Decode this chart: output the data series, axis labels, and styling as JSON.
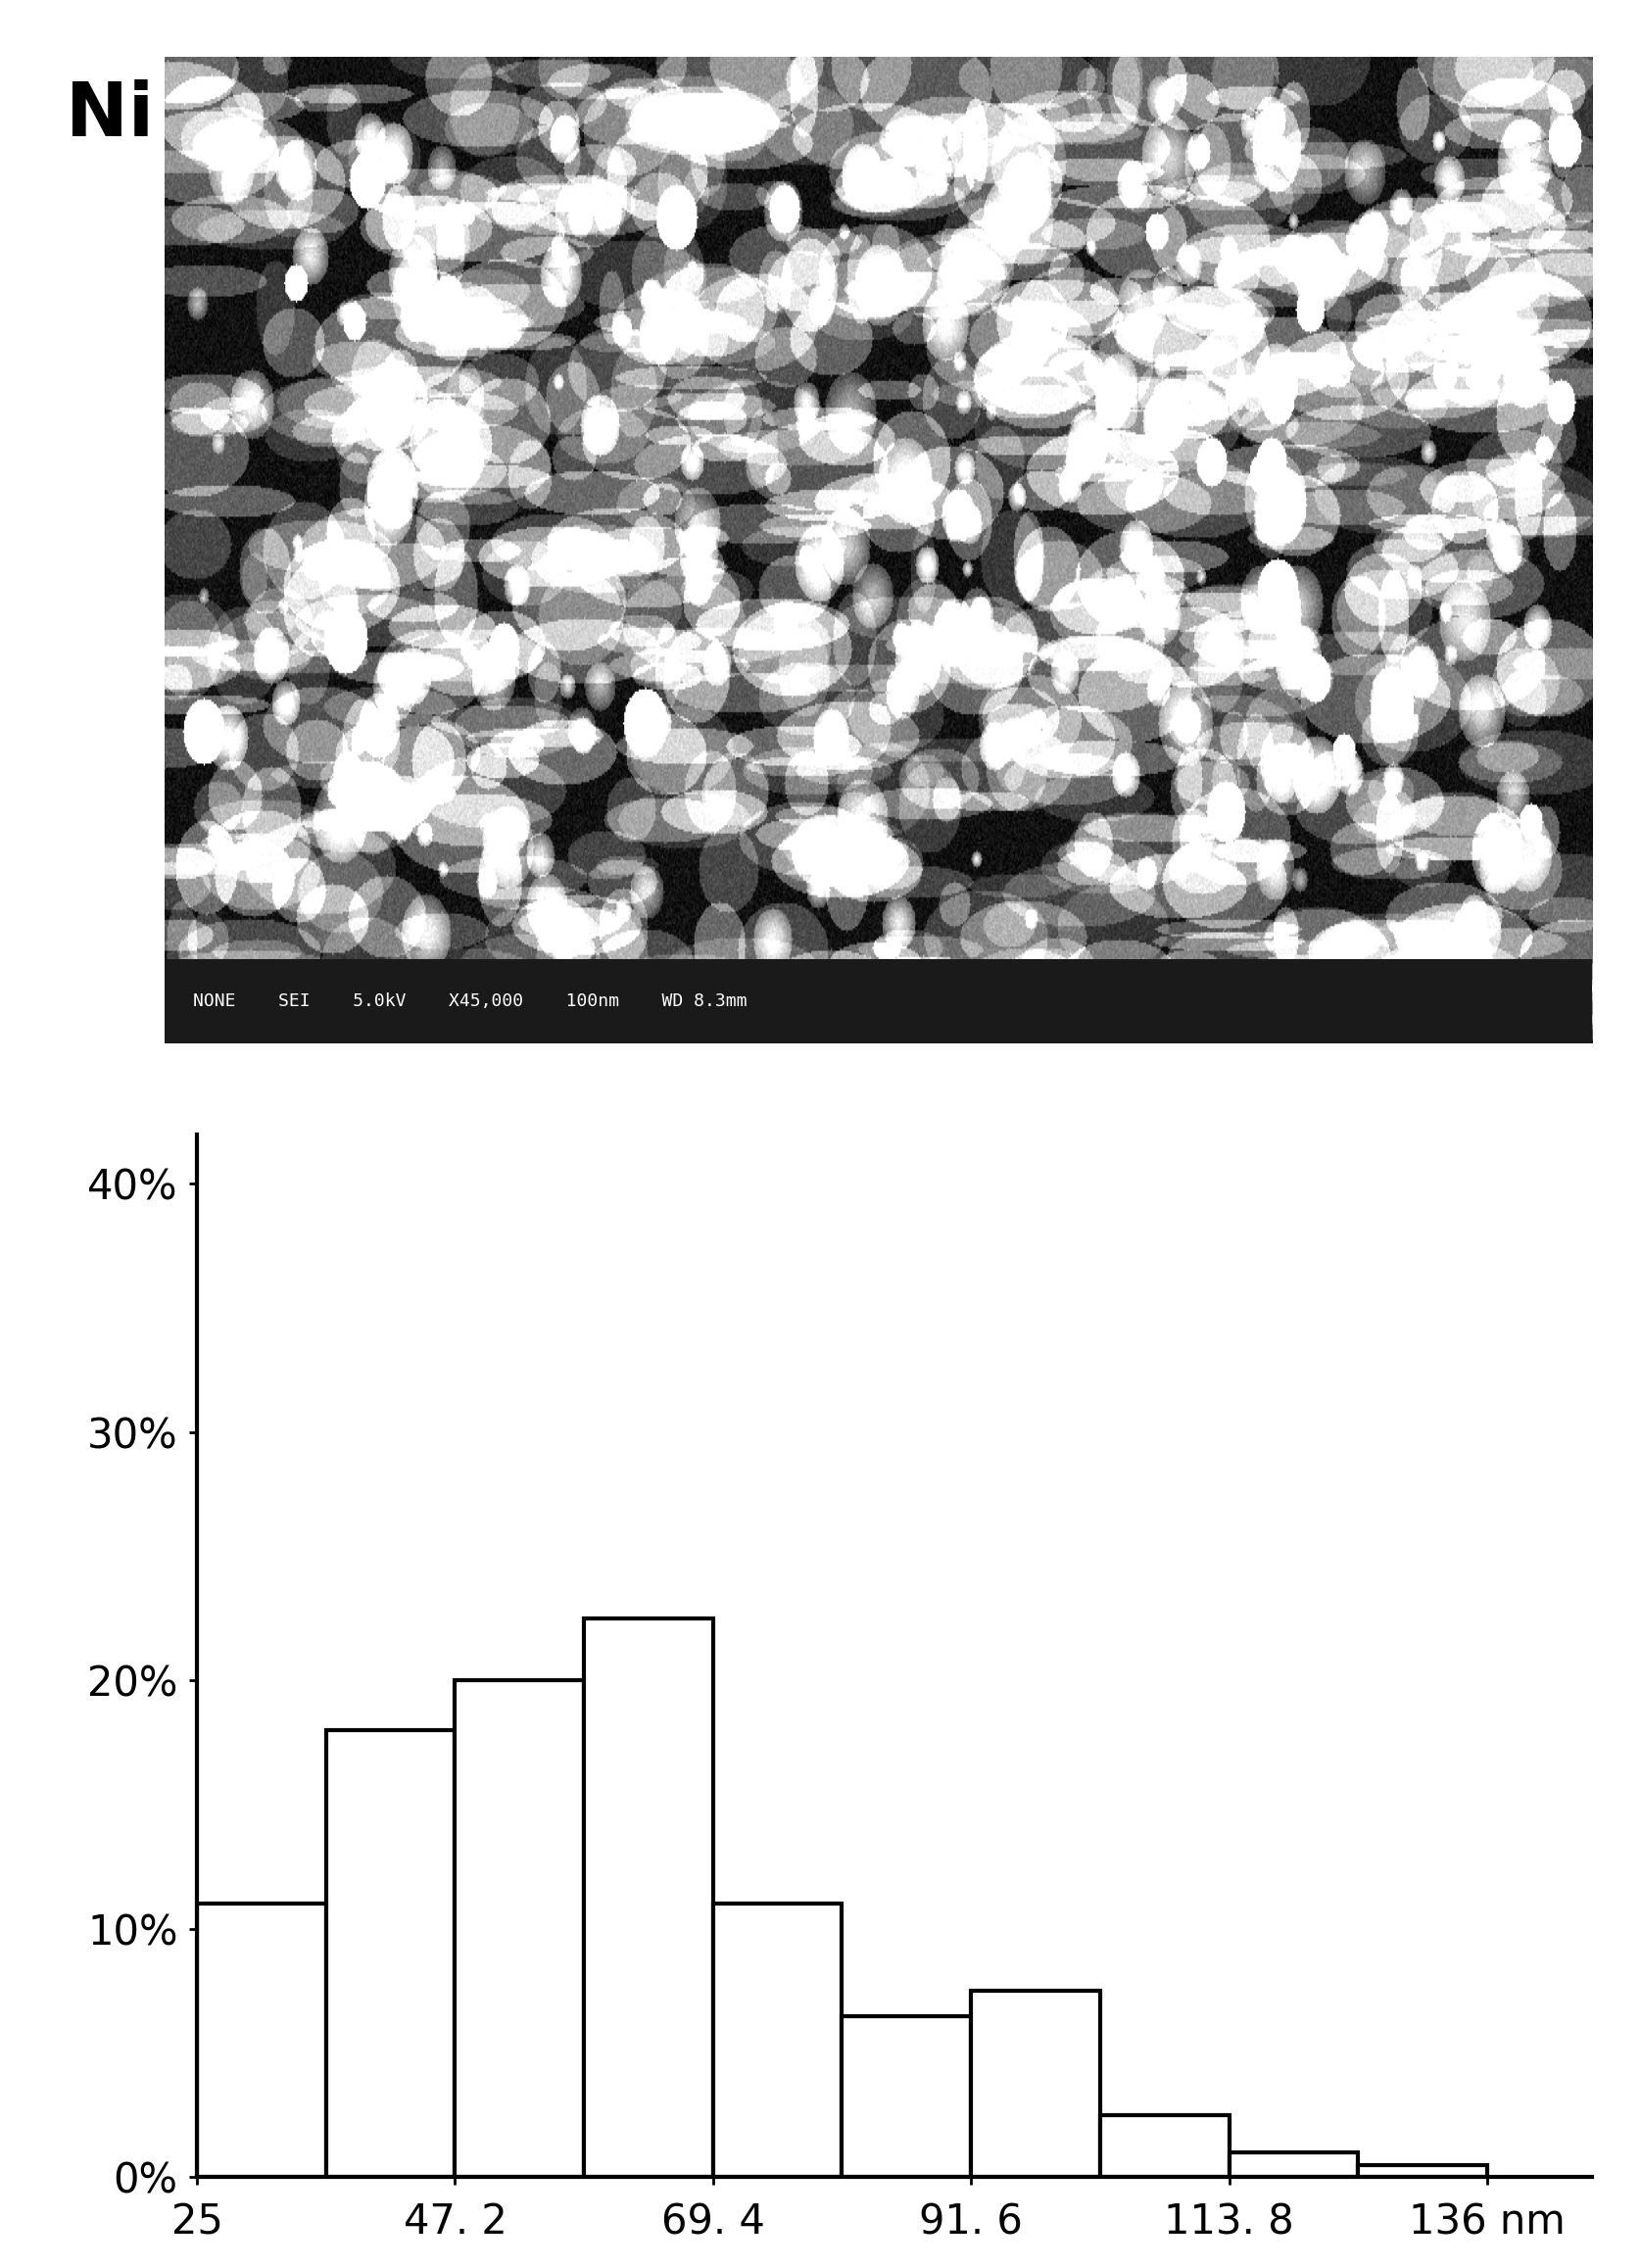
{
  "title_label": "Ni",
  "sem_image_info": "NONE    SEI    5.0kV    X45,000    100nm    WD 8.3mm",
  "bar_edges": [
    25,
    36.1,
    47.2,
    58.3,
    69.4,
    80.5,
    91.6,
    102.7,
    113.8,
    124.9,
    136
  ],
  "bar_heights": [
    11,
    18,
    20,
    22.5,
    11,
    6.5,
    7.5,
    2.5,
    1.0,
    0.5
  ],
  "xtick_labels": [
    "25",
    "47. 2",
    "69. 4",
    "91. 6",
    "113. 8",
    "136 nm"
  ],
  "xtick_positions": [
    25,
    47.2,
    69.4,
    91.6,
    113.8,
    136
  ],
  "ytick_labels": [
    "0%",
    "10%",
    "20%",
    "30%",
    "40%"
  ],
  "ytick_values": [
    0,
    10,
    20,
    30,
    40
  ],
  "ylim": [
    0,
    42
  ],
  "xlim": [
    25,
    145
  ],
  "bar_facecolor": "#ffffff",
  "bar_edgecolor": "#000000",
  "bar_linewidth": 3.0,
  "axis_linewidth": 3.0,
  "background_color": "#ffffff",
  "figure_background": "#ffffff",
  "tick_fontsize": 30,
  "ni_fontsize": 55,
  "sem_info_fontsize": 13
}
